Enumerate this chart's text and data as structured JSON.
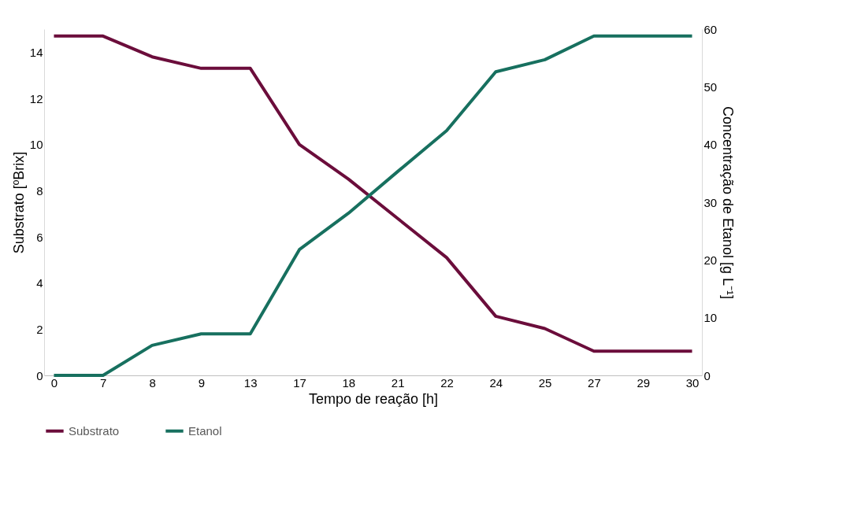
{
  "chart_data": {
    "type": "line",
    "xlabel": "Tempo de reação [h]",
    "ylabel": "Substrato [ºBrix]",
    "y2label": "Concentração de Etanol [g L⁻¹]",
    "categories": [
      "0",
      "7",
      "8",
      "9",
      "13",
      "17",
      "18",
      "21",
      "22",
      "24",
      "25",
      "27",
      "29",
      "30"
    ],
    "series": [
      {
        "name": "Substrato",
        "color": "#6b0d3b",
        "values": [
          14.7,
          14.7,
          13.8,
          13.3,
          13.3,
          10.0,
          8.5,
          6.8,
          5.1,
          2.56,
          2.03,
          1.05,
          1.05,
          1.05
        ]
      },
      {
        "name": "Etanol",
        "color": "#17705f",
        "axis": "y2",
        "values": [
          0,
          0,
          5.2,
          7.2,
          7.2,
          21.8,
          28.1,
          35.3,
          42.4,
          52.6,
          54.7,
          58.8,
          58.8,
          58.8
        ]
      }
    ],
    "ylim": [
      0,
      15
    ],
    "yticks": [
      0,
      2,
      4,
      6,
      8,
      10,
      12,
      14
    ],
    "y2lim": [
      0,
      60
    ],
    "y2ticks": [
      0,
      10,
      20,
      30,
      40,
      50,
      60
    ],
    "grid": false,
    "legend": "bottom left",
    "marker": "none",
    "line_style": "solid"
  }
}
